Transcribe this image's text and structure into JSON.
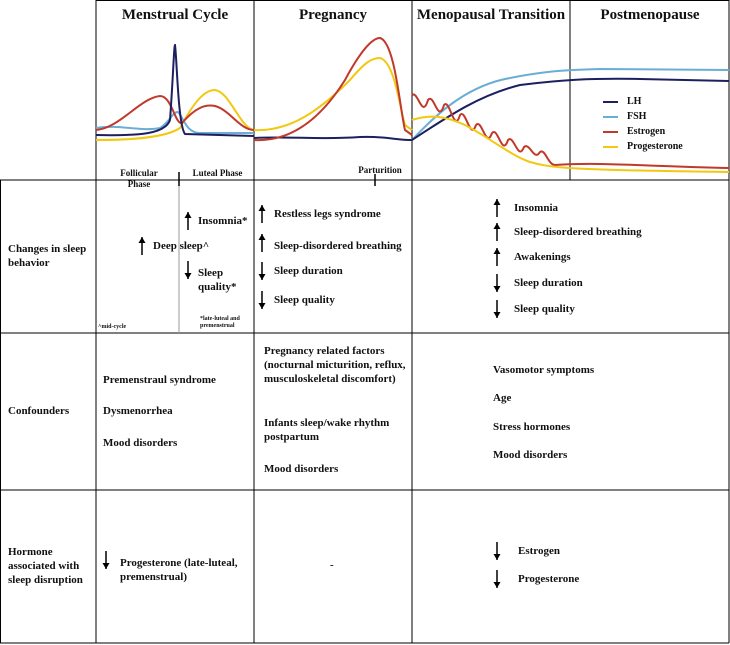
{
  "headers": [
    "Menstrual Cycle",
    "Pregnancy",
    "Menopausal Transition",
    "Postmenopause"
  ],
  "legend": [
    {
      "name": "LH",
      "color": "#1c2060"
    },
    {
      "name": "FSH",
      "color": "#6aaed6"
    },
    {
      "name": "Estrogen",
      "color": "#c0392b"
    },
    {
      "name": "Progesterone",
      "color": "#f2c811"
    }
  ],
  "timeline_labels": [
    "Follicular Phase",
    "Luteal Phase",
    "Parturition"
  ],
  "rows": [
    {
      "label": "Changes in sleep behavior",
      "cells": [
        {
          "items": [
            {
              "text": "Deep sleep^",
              "direction": "up"
            },
            {
              "text": "Insomnia*",
              "direction": "up"
            },
            {
              "text": "Sleep quality*",
              "direction": "down"
            }
          ],
          "notes": [
            "^mid-cycle",
            "*late-luteal and premenstrual"
          ]
        },
        {
          "items": [
            {
              "text": "Restless legs syndrome",
              "direction": "up"
            },
            {
              "text": "Sleep-disordered breathing",
              "direction": "up"
            },
            {
              "text": "Sleep duration",
              "direction": "down"
            },
            {
              "text": "Sleep quality",
              "direction": "down"
            }
          ]
        },
        {
          "items": [
            {
              "text": "Insomnia",
              "direction": "up"
            },
            {
              "text": "Sleep-disordered breathing",
              "direction": "up"
            },
            {
              "text": "Awakenings",
              "direction": "up"
            },
            {
              "text": "Sleep duration",
              "direction": "down"
            },
            {
              "text": "Sleep quality",
              "direction": "down"
            }
          ]
        }
      ]
    },
    {
      "label": "Confounders",
      "cells": [
        {
          "items": [
            {
              "text": "Premenstraul syndrome"
            },
            {
              "text": "Dysmenorrhea"
            },
            {
              "text": "Mood disorders"
            }
          ]
        },
        {
          "items": [
            {
              "text": "Pregnancy related factors (nocturnal micturition, reflux, musculoskeletal discomfort)"
            },
            {
              "text": "Infants sleep/wake rhythm postpartum"
            },
            {
              "text": "Mood disorders"
            }
          ]
        },
        {
          "items": [
            {
              "text": "Vasomotor symptoms"
            },
            {
              "text": "Age"
            },
            {
              "text": "Stress hormones"
            },
            {
              "text": "Mood disorders"
            }
          ]
        }
      ]
    },
    {
      "label": "Hormone associated with sleep disruption",
      "cells": [
        {
          "items": [
            {
              "text": "Progesterone (late-luteal, premenstrual)",
              "direction": "down"
            }
          ]
        },
        {
          "items": [
            {
              "text": "-"
            }
          ]
        },
        {
          "items": [
            {
              "text": "Estrogen",
              "direction": "down"
            },
            {
              "text": "Progesterone",
              "direction": "down"
            }
          ]
        }
      ]
    }
  ]
}
